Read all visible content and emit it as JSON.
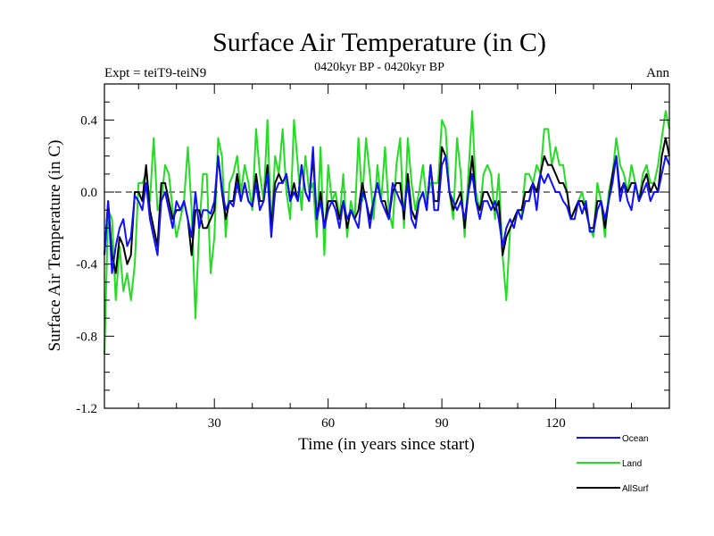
{
  "chart_data": {
    "type": "line",
    "title": "Surface Air Temperature (in C)",
    "subtitle": "0420kyr BP - 0420kyr BP",
    "expt_label": "Expt = teiT9-teiN9",
    "season_label": "Ann",
    "xlabel": "Time (in years since start)",
    "ylabel": "Surface Air Temperature (in C)",
    "xlim": [
      1,
      150
    ],
    "ylim": [
      -1.2,
      0.6
    ],
    "xticks": [
      30,
      60,
      90,
      120
    ],
    "xtick_labels": [
      "30",
      "60",
      "90",
      "120"
    ],
    "yticks": [
      -1.2,
      -0.8,
      -0.4,
      0.0,
      0.4
    ],
    "ytick_labels": [
      "-1.2",
      "-0.8",
      "-0.4",
      "0.0",
      "0.4"
    ],
    "reference_line": 0.0,
    "legend_position": "bottom-right",
    "colors": {
      "Ocean": "#1010ff",
      "Land": "#22dd22",
      "AllSurf": "#000000"
    },
    "x": [
      1,
      2,
      3,
      4,
      5,
      6,
      7,
      8,
      9,
      10,
      11,
      12,
      13,
      14,
      15,
      16,
      17,
      18,
      19,
      20,
      21,
      22,
      23,
      24,
      25,
      26,
      27,
      28,
      29,
      30,
      31,
      32,
      33,
      34,
      35,
      36,
      37,
      38,
      39,
      40,
      41,
      42,
      43,
      44,
      45,
      46,
      47,
      48,
      49,
      50,
      51,
      52,
      53,
      54,
      55,
      56,
      57,
      58,
      59,
      60,
      61,
      62,
      63,
      64,
      65,
      66,
      67,
      68,
      69,
      70,
      71,
      72,
      73,
      74,
      75,
      76,
      77,
      78,
      79,
      80,
      81,
      82,
      83,
      84,
      85,
      86,
      87,
      88,
      89,
      90,
      91,
      92,
      93,
      94,
      95,
      96,
      97,
      98,
      99,
      100,
      101,
      102,
      103,
      104,
      105,
      106,
      107,
      108,
      109,
      110,
      111,
      112,
      113,
      114,
      115,
      116,
      117,
      118,
      119,
      120,
      121,
      122,
      123,
      124,
      125,
      126,
      127,
      128,
      129,
      130,
      131,
      132,
      133,
      134,
      135,
      136,
      137,
      138,
      139,
      140,
      141,
      142,
      143,
      144,
      145,
      146,
      147,
      148,
      149,
      150
    ],
    "series": [
      {
        "name": "Ocean",
        "values": [
          -0.35,
          -0.05,
          -0.45,
          -0.3,
          -0.2,
          -0.15,
          -0.3,
          -0.25,
          -0.02,
          -0.05,
          -0.1,
          0.05,
          -0.15,
          -0.25,
          -0.35,
          -0.05,
          0.0,
          -0.1,
          -0.2,
          -0.05,
          -0.1,
          -0.05,
          -0.15,
          -0.25,
          0.0,
          -0.2,
          -0.1,
          -0.1,
          -0.12,
          -0.05,
          0.2,
          0.02,
          -0.1,
          -0.05,
          -0.08,
          0.05,
          -0.05,
          0.05,
          -0.05,
          -0.08,
          0.05,
          -0.1,
          -0.05,
          0.1,
          -0.25,
          0.0,
          0.05,
          0.05,
          0.1,
          -0.05,
          0.0,
          -0.05,
          0.15,
          0.0,
          -0.05,
          0.25,
          -0.15,
          -0.05,
          -0.2,
          -0.1,
          -0.05,
          -0.1,
          -0.2,
          -0.05,
          -0.15,
          -0.1,
          -0.15,
          -0.2,
          0.0,
          -0.05,
          -0.2,
          -0.05,
          0.05,
          -0.05,
          -0.1,
          -0.15,
          0.05,
          0.0,
          -0.05,
          -0.1,
          0.05,
          -0.15,
          -0.2,
          -0.05,
          0.0,
          -0.1,
          0.15,
          -0.1,
          -0.1,
          0.15,
          0.2,
          0.0,
          -0.05,
          -0.1,
          -0.05,
          -0.15,
          0.0,
          0.1,
          -0.05,
          -0.15,
          -0.05,
          -0.05,
          -0.1,
          -0.05,
          -0.15,
          -0.3,
          -0.2,
          -0.15,
          -0.2,
          -0.1,
          -0.15,
          -0.05,
          -0.05,
          0.05,
          -0.1,
          0.1,
          0.05,
          0.1,
          0.05,
          0.0,
          0.0,
          -0.05,
          -0.08,
          -0.15,
          -0.15,
          -0.05,
          -0.12,
          -0.05,
          -0.22,
          -0.22,
          -0.1,
          -0.05,
          -0.15,
          -0.05,
          0.05,
          0.2,
          -0.05,
          0.05,
          -0.05,
          -0.1,
          0.05,
          -0.05,
          0.0,
          0.05,
          -0.05,
          0.0,
          0.0,
          0.1,
          0.2,
          0.15
        ]
      },
      {
        "name": "Land",
        "values": [
          -0.9,
          -0.1,
          -0.15,
          -0.6,
          -0.3,
          -0.55,
          -0.45,
          -0.6,
          -0.4,
          0.05,
          0.05,
          0.1,
          -0.05,
          0.3,
          -0.1,
          -0.05,
          0.15,
          0.1,
          -0.1,
          -0.25,
          -0.15,
          -0.05,
          0.25,
          -0.1,
          -0.7,
          -0.2,
          0.1,
          0.1,
          -0.45,
          -0.25,
          0.3,
          0.2,
          -0.25,
          0.05,
          0.1,
          0.2,
          0.0,
          0.15,
          0.05,
          -0.1,
          0.35,
          0.1,
          -0.05,
          0.4,
          -0.2,
          0.2,
          0.1,
          0.35,
          0.0,
          -0.15,
          0.4,
          0.15,
          -0.1,
          0.2,
          0.0,
          0.05,
          -0.25,
          0.25,
          -0.35,
          0.15,
          -0.05,
          0.0,
          -0.15,
          0.1,
          -0.25,
          -0.05,
          -0.15,
          0.3,
          -0.05,
          0.3,
          0.1,
          -0.15,
          0.15,
          -0.05,
          0.25,
          -0.1,
          -0.2,
          0.15,
          0.3,
          -0.2,
          0.3,
          0.05,
          -0.1,
          0.0,
          0.15,
          -0.05,
          0.05,
          0.05,
          0.05,
          0.4,
          0.35,
          0.0,
          -0.15,
          0.3,
          0.1,
          -0.25,
          0.1,
          0.45,
          0.0,
          -0.1,
          0.1,
          0.15,
          0.1,
          -0.15,
          0.1,
          -0.35,
          -0.6,
          -0.2,
          -0.15,
          -0.1,
          -0.15,
          0.1,
          0.1,
          0.05,
          0.15,
          0.1,
          0.35,
          0.35,
          0.15,
          0.25,
          0.15,
          0.15,
          0.0,
          -0.15,
          -0.1,
          -0.05,
          0.0,
          -0.1,
          -0.2,
          -0.25,
          0.05,
          -0.05,
          -0.25,
          0.0,
          0.1,
          0.3,
          0.15,
          0.1,
          0.0,
          0.15,
          0.05,
          -0.05,
          0.1,
          0.15,
          0.05,
          0.05,
          0.15,
          0.3,
          0.45,
          0.35
        ]
      },
      {
        "name": "AllSurf",
        "values": [
          -0.35,
          -0.05,
          -0.35,
          -0.45,
          -0.25,
          -0.3,
          -0.4,
          -0.35,
          0.0,
          0.0,
          -0.05,
          0.15,
          -0.1,
          -0.2,
          -0.3,
          0.05,
          0.05,
          -0.05,
          -0.15,
          -0.1,
          -0.1,
          -0.05,
          -0.15,
          -0.35,
          -0.1,
          -0.1,
          -0.2,
          -0.2,
          -0.15,
          -0.1,
          0.2,
          0.0,
          -0.15,
          -0.05,
          -0.05,
          0.1,
          -0.05,
          0.05,
          -0.05,
          -0.08,
          0.1,
          -0.05,
          -0.05,
          0.15,
          -0.2,
          0.05,
          0.1,
          0.05,
          0.1,
          -0.05,
          0.05,
          -0.05,
          0.15,
          0.0,
          -0.05,
          0.2,
          -0.15,
          0.0,
          -0.2,
          -0.05,
          -0.05,
          -0.05,
          -0.15,
          -0.05,
          -0.2,
          -0.1,
          -0.15,
          -0.1,
          0.05,
          -0.05,
          -0.15,
          -0.05,
          0.05,
          -0.05,
          -0.05,
          -0.15,
          0.0,
          0.05,
          0.05,
          -0.15,
          0.1,
          -0.1,
          -0.15,
          -0.05,
          0.0,
          -0.1,
          0.15,
          -0.05,
          -0.05,
          0.25,
          0.2,
          0.0,
          -0.1,
          -0.05,
          0.0,
          -0.2,
          0.0,
          0.2,
          -0.05,
          -0.1,
          0.0,
          0.0,
          -0.05,
          -0.1,
          -0.05,
          -0.35,
          -0.25,
          -0.2,
          -0.15,
          -0.1,
          -0.1,
          0.0,
          0.0,
          0.05,
          0.0,
          0.1,
          0.2,
          0.15,
          0.15,
          0.1,
          0.05,
          0.05,
          0.0,
          -0.15,
          -0.1,
          -0.05,
          -0.05,
          -0.1,
          -0.2,
          -0.2,
          -0.05,
          -0.05,
          -0.2,
          -0.05,
          0.1,
          0.2,
          0.0,
          0.05,
          0.0,
          0.05,
          0.05,
          -0.05,
          0.05,
          0.1,
          0.0,
          0.05,
          0.0,
          0.2,
          0.3,
          0.2
        ]
      }
    ]
  }
}
